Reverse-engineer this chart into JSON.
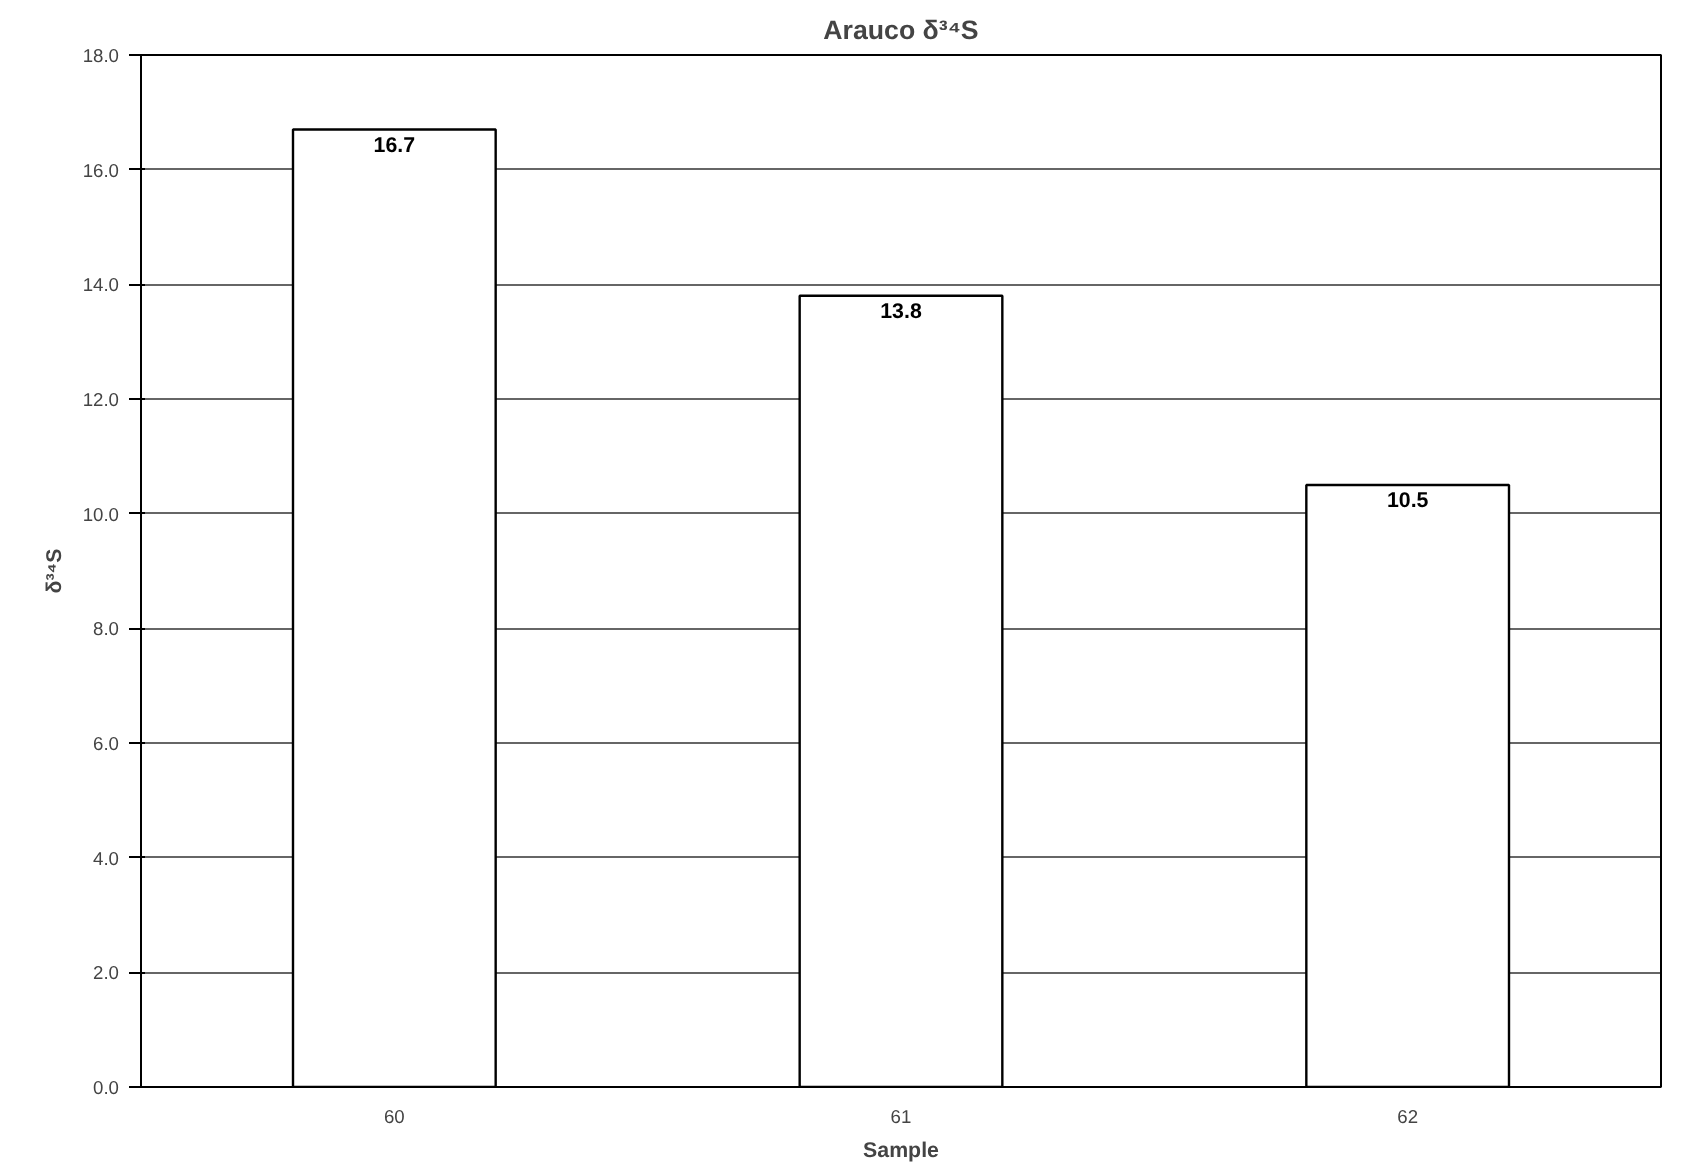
{
  "chart_data": {
    "type": "bar",
    "title": "Arauco δ³⁴S",
    "xlabel": "Sample",
    "ylabel": "δ³⁴S",
    "categories": [
      "60",
      "61",
      "62"
    ],
    "values": [
      16.7,
      13.8,
      10.5
    ],
    "color": "#ffffff",
    "ylim": [
      0,
      18
    ],
    "yticks": [
      {
        "value": 0,
        "label": "0.0"
      },
      {
        "value": 2,
        "label": "2.0"
      },
      {
        "value": 4,
        "label": "4.0"
      },
      {
        "value": 6,
        "label": "6.0"
      },
      {
        "value": 8,
        "label": "8.0"
      },
      {
        "value": 10,
        "label": "10.0"
      },
      {
        "value": 12,
        "label": "12.0"
      },
      {
        "value": 14,
        "label": "14.0"
      },
      {
        "value": 16,
        "label": "16.0"
      },
      {
        "value": 18,
        "label": "18.0"
      }
    ],
    "grid": "y",
    "data_labels": true
  }
}
